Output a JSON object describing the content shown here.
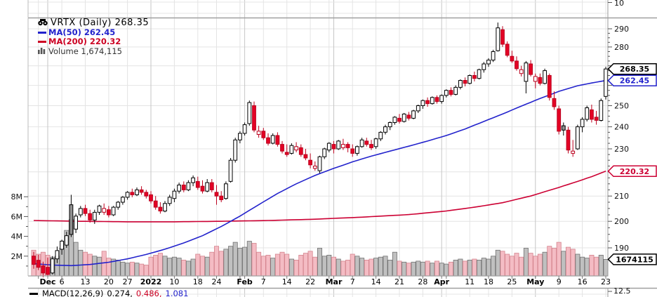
{
  "legend": {
    "title": "VRTX (Daily) 268.35",
    "ma50": "MA(50) 262.45",
    "ma200": "MA(200) 220.32",
    "volume": "Volume 1,674,115"
  },
  "macd_row": {
    "label": "MACD(12,26,9)",
    "v1": "0.274,",
    "v2": "0.486,",
    "v3": "1.081"
  },
  "neighbor_panes": {
    "top_right_label": "10",
    "bottom_right_label": "12.5"
  },
  "colors": {
    "up_stroke": "#000000",
    "up_fill": "#ffffff",
    "up_filled_fill": "#909090",
    "down_stroke": "#bb001d",
    "down_fill": "#e40025",
    "ma50": "#2222cc",
    "ma200": "#cc0033",
    "vol_up_fill": "#c0c0c0",
    "vol_up_stroke": "#707070",
    "vol_down_fill": "#f4bcc4",
    "vol_down_stroke": "#d4848e",
    "grid": "#e4e4e4",
    "grid_month": "#c6c6c6",
    "border": "#999999",
    "axis_text": "#111111"
  },
  "chart_data": {
    "type": "candlestick",
    "title": "VRTX (Daily)",
    "last_price": 268.35,
    "scale": "log",
    "price_axis_range": [
      182,
      295
    ],
    "price_gridlines": [
      190,
      200,
      210,
      220,
      230,
      240,
      250,
      260,
      270,
      280,
      290
    ],
    "price_tick_labels": [
      "290",
      "280",
      "250",
      "240",
      "230",
      "210",
      "200",
      "190"
    ],
    "price_tick_values": [
      290,
      280,
      250,
      240,
      230,
      210,
      200,
      190
    ],
    "volume_ticks": [
      {
        "v": 2,
        "label": "2M"
      },
      {
        "v": 4,
        "label": "4M"
      },
      {
        "v": 6,
        "label": "6M"
      },
      {
        "v": 8,
        "label": "8M"
      }
    ],
    "callouts": [
      {
        "text": "262.45",
        "price": 262.45,
        "color": "#2222cc"
      },
      {
        "text": "268.35",
        "price": 268.35,
        "color": "#000000"
      },
      {
        "text": "220.32",
        "price": 220.32,
        "color": "#cc0033"
      },
      {
        "text": "1674115",
        "volume": 1.674115,
        "color": "#000000"
      }
    ],
    "x_labels": [
      [
        3,
        "Dec",
        1
      ],
      [
        6,
        "6",
        0
      ],
      [
        11,
        "13",
        0
      ],
      [
        16,
        "20",
        0
      ],
      [
        20,
        "27",
        0
      ],
      [
        25,
        "2022",
        1
      ],
      [
        30,
        "10",
        0
      ],
      [
        35,
        "18",
        0
      ],
      [
        39,
        "24",
        0
      ],
      [
        45,
        "Feb",
        1
      ],
      [
        49,
        "7",
        0
      ],
      [
        54,
        "14",
        0
      ],
      [
        59,
        "22",
        0
      ],
      [
        64,
        "Mar",
        1
      ],
      [
        68,
        "7",
        0
      ],
      [
        73,
        "14",
        0
      ],
      [
        78,
        "21",
        0
      ],
      [
        83,
        "28",
        0
      ],
      [
        87,
        "Apr",
        1
      ],
      [
        93,
        "11",
        0
      ],
      [
        97,
        "18",
        0
      ],
      [
        102,
        "25",
        0
      ],
      [
        107,
        "May",
        1
      ],
      [
        112,
        "9",
        0
      ],
      [
        117,
        "16",
        0
      ],
      [
        122,
        "23",
        0
      ]
    ],
    "week_gridline_idx": [
      1,
      6,
      11,
      16,
      20,
      25,
      30,
      35,
      39,
      44,
      49,
      54,
      59,
      63,
      68,
      73,
      78,
      83,
      88,
      93,
      97,
      102,
      107,
      112,
      117,
      122
    ],
    "month_gridline_idx": [
      3,
      25,
      45,
      64,
      87,
      107
    ],
    "ma50_anchors": [
      [
        0,
        184.3
      ],
      [
        4,
        183.8
      ],
      [
        8,
        183.6
      ],
      [
        12,
        184
      ],
      [
        16,
        184.8
      ],
      [
        20,
        186
      ],
      [
        24,
        187.6
      ],
      [
        28,
        189.5
      ],
      [
        32,
        191.8
      ],
      [
        36,
        194.5
      ],
      [
        40,
        198
      ],
      [
        44,
        202
      ],
      [
        48,
        206.5
      ],
      [
        52,
        211
      ],
      [
        56,
        215
      ],
      [
        60,
        218.5
      ],
      [
        64,
        221.5
      ],
      [
        68,
        224.3
      ],
      [
        72,
        226.8
      ],
      [
        76,
        229
      ],
      [
        80,
        231.2
      ],
      [
        84,
        233.5
      ],
      [
        88,
        236
      ],
      [
        92,
        239
      ],
      [
        96,
        242.5
      ],
      [
        100,
        246
      ],
      [
        104,
        249.8
      ],
      [
        108,
        253.5
      ],
      [
        112,
        257
      ],
      [
        116,
        259.8
      ],
      [
        119,
        261.2
      ],
      [
        122,
        262.45
      ]
    ],
    "ma200_anchors": [
      [
        0,
        200.3
      ],
      [
        10,
        200
      ],
      [
        20,
        199.8
      ],
      [
        30,
        199.8
      ],
      [
        40,
        200
      ],
      [
        50,
        200.3
      ],
      [
        60,
        200.8
      ],
      [
        70,
        201.6
      ],
      [
        80,
        202.6
      ],
      [
        88,
        204
      ],
      [
        94,
        205.5
      ],
      [
        100,
        207.3
      ],
      [
        106,
        210
      ],
      [
        112,
        213.5
      ],
      [
        116,
        216
      ],
      [
        119,
        218
      ],
      [
        122,
        220.32
      ]
    ],
    "candles_format": [
      "open",
      "high",
      "low",
      "close",
      "volume_millions"
    ],
    "candles": [
      [
        187,
        188.5,
        182.5,
        184,
        2.6
      ],
      [
        185.5,
        187.5,
        182,
        183,
        2.2
      ],
      [
        183.5,
        185,
        179.5,
        181,
        2.4
      ],
      [
        183,
        186.5,
        179.5,
        180.5,
        2.1
      ],
      [
        181,
        187,
        180.5,
        186,
        1.9
      ],
      [
        186,
        190.5,
        184.5,
        189,
        2.0
      ],
      [
        189.5,
        193,
        187.5,
        192.5,
        2.8
      ],
      [
        191,
        196,
        190,
        194.5,
        4.6
      ],
      [
        206.5,
        210.5,
        194,
        195,
        5.7
      ],
      [
        197,
        203,
        195.5,
        202,
        3.4
      ],
      [
        202.5,
        206,
        201.5,
        205,
        2.6
      ],
      [
        205,
        206.5,
        202,
        203,
        2.4
      ],
      [
        203,
        204.5,
        199.5,
        200.5,
        2.2
      ],
      [
        200.5,
        204.5,
        199,
        203.5,
        2.0
      ],
      [
        203.5,
        206.5,
        202.5,
        206,
        1.9
      ],
      [
        203.5,
        207,
        202.5,
        205,
        2.5
      ],
      [
        204.5,
        206,
        201.5,
        202.5,
        1.8
      ],
      [
        202.5,
        206,
        202,
        205.5,
        1.7
      ],
      [
        205.5,
        208,
        204.5,
        207.5,
        1.6
      ],
      [
        207.5,
        210,
        206.5,
        209.5,
        1.4
      ],
      [
        209.5,
        212,
        208.5,
        211.5,
        1.3
      ],
      [
        211.5,
        213,
        209.5,
        210.5,
        1.4
      ],
      [
        210.5,
        213.5,
        210,
        212.5,
        1.3
      ],
      [
        212.5,
        214,
        210.5,
        211.5,
        1.2
      ],
      [
        211.5,
        212.5,
        209,
        210,
        1.1
      ],
      [
        210.5,
        212,
        207,
        208,
        1.9
      ],
      [
        208,
        210,
        204.5,
        205.5,
        2.1
      ],
      [
        205.5,
        207.5,
        203,
        204,
        2.3
      ],
      [
        204,
        208,
        203.5,
        207,
        2.0
      ],
      [
        207,
        210.5,
        206,
        209.5,
        1.8
      ],
      [
        209,
        213,
        207.5,
        212,
        1.9
      ],
      [
        212,
        215.5,
        211,
        214.5,
        1.8
      ],
      [
        214.5,
        216,
        211.5,
        212.5,
        1.6
      ],
      [
        212.5,
        216.5,
        212,
        215.5,
        1.5
      ],
      [
        215.5,
        218.5,
        214,
        217.5,
        1.7
      ],
      [
        216,
        218,
        212.5,
        213.5,
        2.2
      ],
      [
        214,
        216.5,
        211,
        212,
        2.0
      ],
      [
        212,
        217,
        211.5,
        215.5,
        1.9
      ],
      [
        215.5,
        217,
        211.5,
        212.5,
        2.4
      ],
      [
        211.5,
        214.5,
        206.5,
        210,
        3.0
      ],
      [
        210,
        212,
        207.5,
        208.5,
        2.5
      ],
      [
        209,
        216,
        208.5,
        215,
        2.7
      ],
      [
        216,
        226,
        215.5,
        225,
        3.0
      ],
      [
        225,
        235,
        224,
        234,
        3.4
      ],
      [
        234,
        238,
        232.5,
        237,
        2.8
      ],
      [
        237,
        242,
        236,
        241,
        2.9
      ],
      [
        241.5,
        252.5,
        240.5,
        251.5,
        3.5
      ],
      [
        250,
        252,
        237.5,
        238.5,
        3.3
      ],
      [
        236.5,
        240.5,
        235,
        238,
        2.4
      ],
      [
        238,
        239.5,
        234,
        235,
        2.0
      ],
      [
        235,
        237,
        231.5,
        232.5,
        2.1
      ],
      [
        232.5,
        237,
        232,
        236,
        1.8
      ],
      [
        236,
        237.5,
        231,
        232,
        2.2
      ],
      [
        232,
        233.5,
        228,
        229,
        2.4
      ],
      [
        228.5,
        232,
        226.5,
        227.5,
        2.2
      ],
      [
        228,
        232.5,
        227.5,
        231.5,
        1.7
      ],
      [
        229.5,
        233,
        228.5,
        231,
        1.6
      ],
      [
        230.5,
        232,
        226.5,
        227.5,
        2.1
      ],
      [
        227.5,
        230,
        225,
        226,
        2.3
      ],
      [
        225,
        228,
        221.5,
        223,
        2.5
      ],
      [
        221.5,
        224.5,
        220.5,
        222.5,
        1.9
      ],
      [
        220.5,
        227,
        219.5,
        226.5,
        2.8
      ],
      [
        226.5,
        230.5,
        225.5,
        230,
        2.0
      ],
      [
        229.5,
        233,
        228.5,
        232.5,
        2.1
      ],
      [
        232,
        233.5,
        228,
        230,
        1.9
      ],
      [
        230,
        234,
        229.5,
        233.5,
        1.7
      ],
      [
        230.5,
        234.5,
        229.5,
        232,
        1.5
      ],
      [
        232,
        233,
        228.5,
        230.5,
        1.6
      ],
      [
        230,
        232,
        226.5,
        228,
        2.2
      ],
      [
        228,
        231.5,
        227,
        231,
        2.0
      ],
      [
        231,
        235,
        230.5,
        234,
        1.8
      ],
      [
        233.5,
        235,
        231,
        232,
        1.6
      ],
      [
        232,
        234,
        229.5,
        230.5,
        1.7
      ],
      [
        231,
        235,
        230,
        234.5,
        1.8
      ],
      [
        234.5,
        238,
        233.5,
        237.5,
        1.9
      ],
      [
        237.5,
        241,
        236.5,
        240,
        2.0
      ],
      [
        240,
        242.5,
        238.5,
        242,
        1.6
      ],
      [
        242,
        245,
        241,
        244.5,
        2.4
      ],
      [
        244,
        246,
        241.5,
        242.5,
        1.5
      ],
      [
        242.5,
        246.5,
        242,
        246,
        1.4
      ],
      [
        245.5,
        247,
        243,
        244,
        1.3
      ],
      [
        244,
        248,
        243.5,
        247.5,
        1.4
      ],
      [
        247.5,
        250.5,
        246.5,
        250,
        1.5
      ],
      [
        250,
        253,
        248.5,
        252.5,
        1.4
      ],
      [
        252.5,
        254,
        249.5,
        251,
        1.5
      ],
      [
        251,
        254.5,
        250.5,
        254,
        1.3
      ],
      [
        254,
        255,
        251,
        252,
        1.5
      ],
      [
        252,
        255.5,
        251,
        255,
        1.3
      ],
      [
        255,
        258,
        254,
        257.5,
        1.2
      ],
      [
        257.5,
        259,
        254.5,
        255.5,
        1.4
      ],
      [
        255.5,
        260,
        255,
        259,
        1.6
      ],
      [
        259,
        263,
        258,
        262.5,
        1.7
      ],
      [
        262.5,
        264,
        259.5,
        261,
        1.5
      ],
      [
        261,
        265.5,
        260.5,
        265,
        1.6
      ],
      [
        265,
        267,
        262,
        263.5,
        1.7
      ],
      [
        263.5,
        268.5,
        263,
        268,
        1.6
      ],
      [
        268,
        272,
        266.5,
        271,
        1.8
      ],
      [
        271,
        274,
        269.5,
        273,
        1.7
      ],
      [
        273,
        278.5,
        272,
        277.5,
        2.0
      ],
      [
        278,
        293.5,
        277.5,
        290.5,
        2.6
      ],
      [
        289.5,
        291.5,
        280,
        281.5,
        2.5
      ],
      [
        281.5,
        283,
        274.5,
        275.5,
        2.2
      ],
      [
        275,
        278,
        271.5,
        272.5,
        2.0
      ],
      [
        272.5,
        275,
        267.5,
        268.5,
        2.3
      ],
      [
        266,
        270,
        264.5,
        268,
        1.9
      ],
      [
        262,
        272.5,
        256,
        271.5,
        2.8
      ],
      [
        271,
        273,
        264.5,
        265.5,
        2.3
      ],
      [
        262,
        266,
        258.5,
        264.5,
        2.0
      ],
      [
        264,
        266,
        260,
        261,
        2.2
      ],
      [
        261,
        268.5,
        260.5,
        267.5,
        2.4
      ],
      [
        265,
        266,
        252.5,
        254,
        3.0
      ],
      [
        253.5,
        257,
        248,
        249.5,
        2.8
      ],
      [
        248.5,
        250,
        236.5,
        238,
        3.4
      ],
      [
        240.5,
        242,
        236,
        238.5,
        2.5
      ],
      [
        238.5,
        240,
        228,
        229.5,
        2.9
      ],
      [
        228,
        234,
        226.5,
        229,
        2.7
      ],
      [
        230,
        241,
        229.5,
        240,
        2.2
      ],
      [
        240,
        244.5,
        237.5,
        243.5,
        1.9
      ],
      [
        243.5,
        250,
        242.5,
        249,
        1.8
      ],
      [
        248,
        250.5,
        242,
        243.5,
        2.1
      ],
      [
        244.5,
        247.5,
        241,
        243,
        1.9
      ],
      [
        243,
        253.5,
        242.5,
        252.5,
        2.1
      ],
      [
        254.5,
        269.5,
        253,
        268.35,
        1.674115
      ]
    ]
  }
}
